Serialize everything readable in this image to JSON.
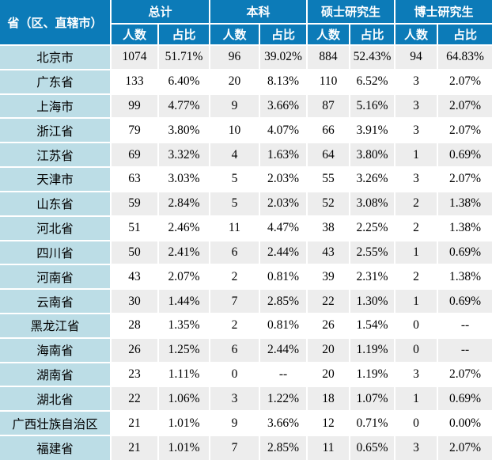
{
  "chart_data": {
    "type": "table",
    "corner_label": "省（区、直辖市）",
    "column_groups": [
      {
        "label": "总计",
        "subcolumns": [
          "人数",
          "占比"
        ]
      },
      {
        "label": "本科",
        "subcolumns": [
          "人数",
          "占比"
        ]
      },
      {
        "label": "硕士研究生",
        "subcolumns": [
          "人数",
          "占比"
        ]
      },
      {
        "label": "博士研究生",
        "subcolumns": [
          "人数",
          "占比"
        ]
      }
    ],
    "rows": [
      {
        "province": "北京市",
        "values": [
          1074,
          "51.71%",
          96,
          "39.02%",
          884,
          "52.43%",
          94,
          "64.83%"
        ]
      },
      {
        "province": "广东省",
        "values": [
          133,
          "6.40%",
          20,
          "8.13%",
          110,
          "6.52%",
          3,
          "2.07%"
        ]
      },
      {
        "province": "上海市",
        "values": [
          99,
          "4.77%",
          9,
          "3.66%",
          87,
          "5.16%",
          3,
          "2.07%"
        ]
      },
      {
        "province": "浙江省",
        "values": [
          79,
          "3.80%",
          10,
          "4.07%",
          66,
          "3.91%",
          3,
          "2.07%"
        ]
      },
      {
        "province": "江苏省",
        "values": [
          69,
          "3.32%",
          4,
          "1.63%",
          64,
          "3.80%",
          1,
          "0.69%"
        ]
      },
      {
        "province": "天津市",
        "values": [
          63,
          "3.03%",
          5,
          "2.03%",
          55,
          "3.26%",
          3,
          "2.07%"
        ]
      },
      {
        "province": "山东省",
        "values": [
          59,
          "2.84%",
          5,
          "2.03%",
          52,
          "3.08%",
          2,
          "1.38%"
        ]
      },
      {
        "province": "河北省",
        "values": [
          51,
          "2.46%",
          11,
          "4.47%",
          38,
          "2.25%",
          2,
          "1.38%"
        ]
      },
      {
        "province": "四川省",
        "values": [
          50,
          "2.41%",
          6,
          "2.44%",
          43,
          "2.55%",
          1,
          "0.69%"
        ]
      },
      {
        "province": "河南省",
        "values": [
          43,
          "2.07%",
          2,
          "0.81%",
          39,
          "2.31%",
          2,
          "1.38%"
        ]
      },
      {
        "province": "云南省",
        "values": [
          30,
          "1.44%",
          7,
          "2.85%",
          22,
          "1.30%",
          1,
          "0.69%"
        ]
      },
      {
        "province": "黑龙江省",
        "values": [
          28,
          "1.35%",
          2,
          "0.81%",
          26,
          "1.54%",
          0,
          "--"
        ]
      },
      {
        "province": "海南省",
        "values": [
          26,
          "1.25%",
          6,
          "2.44%",
          20,
          "1.19%",
          0,
          "--"
        ]
      },
      {
        "province": "湖南省",
        "values": [
          23,
          "1.11%",
          0,
          "--",
          20,
          "1.19%",
          3,
          "2.07%"
        ]
      },
      {
        "province": "湖北省",
        "values": [
          22,
          "1.06%",
          3,
          "1.22%",
          18,
          "1.07%",
          1,
          "0.69%"
        ]
      },
      {
        "province": "广西壮族自治区",
        "values": [
          21,
          "1.01%",
          9,
          "3.66%",
          12,
          "0.71%",
          0,
          "0.00%"
        ]
      },
      {
        "province": "福建省",
        "values": [
          21,
          "1.01%",
          7,
          "2.85%",
          11,
          "0.65%",
          3,
          "2.07%"
        ]
      }
    ]
  },
  "colors": {
    "header_bg": "#0c7bb8",
    "header_text": "#ffffff",
    "province_col_bg": "#bcdde6",
    "stripe_row_bg": "#ededed",
    "plain_row_bg": "#ffffff",
    "grid_lines": "#ffffff",
    "body_text": "#000000"
  }
}
